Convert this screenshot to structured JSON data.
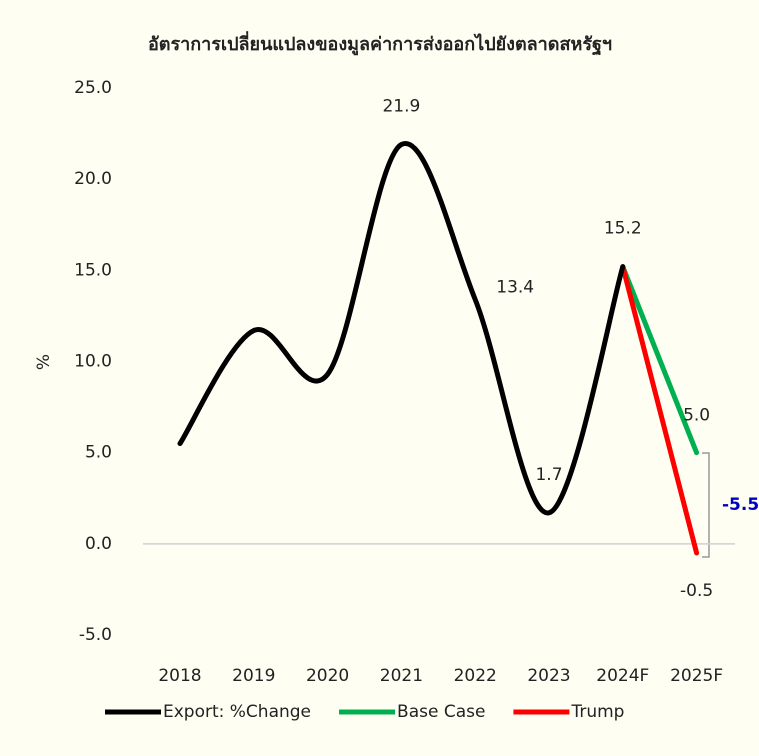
{
  "chart_data": {
    "type": "line",
    "title": "อัตราการเปลี่ยนแปลงของมูลค่าการส่งออกไปยังตลาดสหรัฐฯ",
    "ylabel": "%",
    "categories": [
      "2018",
      "2019",
      "2020",
      "2021",
      "2022",
      "2023",
      "2024F",
      "2025F"
    ],
    "series": [
      {
        "name": "Export: %Change",
        "color": "#000000",
        "values": [
          5.5,
          11.7,
          9.3,
          21.9,
          13.4,
          1.7,
          15.2,
          null
        ],
        "value_labels": [
          null,
          null,
          null,
          "21.9",
          "13.4",
          "1.7",
          "15.2",
          null
        ]
      },
      {
        "name": "Base Case",
        "color": "#00b050",
        "values": [
          null,
          null,
          null,
          null,
          null,
          null,
          15.2,
          5.0
        ],
        "value_labels": [
          null,
          null,
          null,
          null,
          null,
          null,
          null,
          "5.0"
        ]
      },
      {
        "name": "Trump",
        "color": "#ff0000",
        "values": [
          null,
          null,
          null,
          null,
          null,
          null,
          15.2,
          -0.5
        ],
        "value_labels": [
          null,
          null,
          null,
          null,
          null,
          null,
          null,
          "-0.5"
        ]
      }
    ],
    "annotation": "-5.5",
    "ylim": [
      -5,
      25
    ],
    "yticks": [
      {
        "value": -5,
        "label": "-5.0"
      },
      {
        "value": 0,
        "label": "0.0"
      },
      {
        "value": 5,
        "label": "5.0"
      },
      {
        "value": 10,
        "label": "10.0"
      },
      {
        "value": 15,
        "label": "15.0"
      },
      {
        "value": 20,
        "label": "20.0"
      },
      {
        "value": 25,
        "label": "25.0"
      }
    ],
    "legend": "bottom"
  }
}
